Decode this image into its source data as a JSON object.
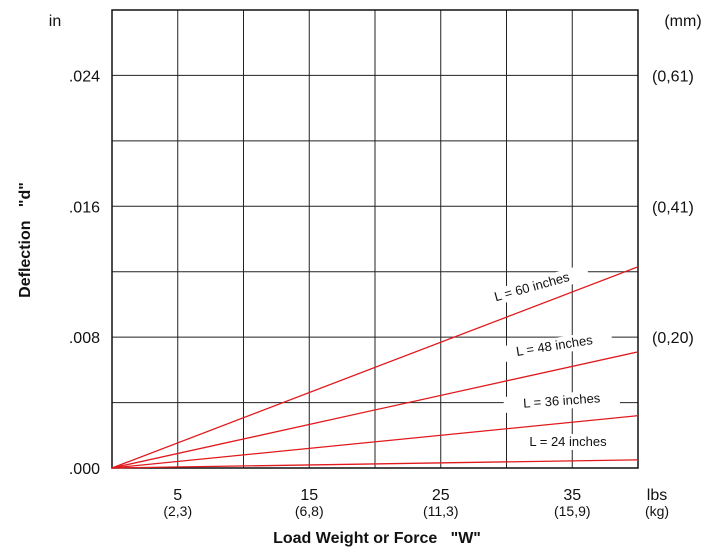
{
  "chart_data": {
    "type": "line",
    "title": "",
    "xlabel": "Load Weight or Force   \"W\"",
    "ylabel": "Deflection   \"d\"",
    "xlim": [
      0,
      40
    ],
    "ylim": [
      0,
      0.028
    ],
    "grid": true,
    "x_ticks": [
      {
        "value": 5,
        "label": "5",
        "sublabel": "(2,3)"
      },
      {
        "value": 15,
        "label": "15",
        "sublabel": "(6,8)"
      },
      {
        "value": 25,
        "label": "25",
        "sublabel": "(11,3)"
      },
      {
        "value": 35,
        "label": "35",
        "sublabel": "(15,9)"
      }
    ],
    "x_unit": {
      "label": "lbs",
      "sublabel": "(kg)"
    },
    "y_ticks": [
      {
        "value": 0,
        "label": ".000",
        "mm": ""
      },
      {
        "value": 0.008,
        "label": ".008",
        "mm": "(0,20)"
      },
      {
        "value": 0.016,
        "label": ".016",
        "mm": "(0,41)"
      },
      {
        "value": 0.024,
        "label": ".024",
        "mm": "(0,61)"
      }
    ],
    "y_unit_left": "in",
    "y_unit_right": "(mm)",
    "series_color": "#e0191d",
    "series": [
      {
        "name": "L = 60 inches",
        "x": [
          0,
          40
        ],
        "y": [
          0,
          0.0123
        ]
      },
      {
        "name": "L = 48 inches",
        "x": [
          0,
          40
        ],
        "y": [
          0,
          0.0071
        ]
      },
      {
        "name": "L = 36 inches",
        "x": [
          0,
          40
        ],
        "y": [
          0,
          0.0032
        ]
      },
      {
        "name": "L = 24 inches",
        "x": [
          0,
          40
        ],
        "y": [
          0,
          0.0005
        ]
      }
    ]
  }
}
